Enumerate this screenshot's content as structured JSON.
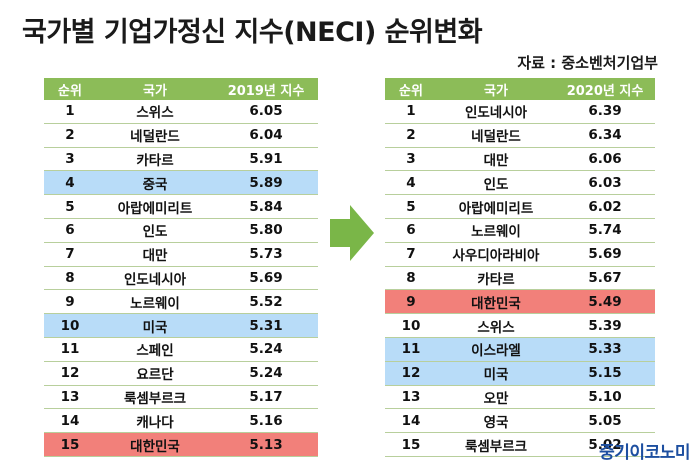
{
  "title": "국가별 기업가정신 지수(NECI) 순위변화",
  "source": "자료 : 중소벤처기업부",
  "watermark": "중기이코노미",
  "colors": {
    "header_green": "#8cbc58",
    "highlight_blue": "#b8dcf8",
    "highlight_red": "#f2807a",
    "arrow_green": "#7ab648"
  },
  "table_2019": {
    "headers": [
      "순위",
      "국가",
      "2019년 지수"
    ],
    "rows": [
      {
        "rank": "1",
        "country": "스위스",
        "score": "6.05",
        "highlight": ""
      },
      {
        "rank": "2",
        "country": "네덜란드",
        "score": "6.04",
        "highlight": ""
      },
      {
        "rank": "3",
        "country": "카타르",
        "score": "5.91",
        "highlight": ""
      },
      {
        "rank": "4",
        "country": "중국",
        "score": "5.89",
        "highlight": "blue"
      },
      {
        "rank": "5",
        "country": "아랍에미리트",
        "score": "5.84",
        "highlight": ""
      },
      {
        "rank": "6",
        "country": "인도",
        "score": "5.80",
        "highlight": ""
      },
      {
        "rank": "7",
        "country": "대만",
        "score": "5.73",
        "highlight": ""
      },
      {
        "rank": "8",
        "country": "인도네시아",
        "score": "5.69",
        "highlight": ""
      },
      {
        "rank": "9",
        "country": "노르웨이",
        "score": "5.52",
        "highlight": ""
      },
      {
        "rank": "10",
        "country": "미국",
        "score": "5.31",
        "highlight": "blue"
      },
      {
        "rank": "11",
        "country": "스페인",
        "score": "5.24",
        "highlight": ""
      },
      {
        "rank": "12",
        "country": "요르단",
        "score": "5.24",
        "highlight": ""
      },
      {
        "rank": "13",
        "country": "룩셈부르크",
        "score": "5.17",
        "highlight": ""
      },
      {
        "rank": "14",
        "country": "캐나다",
        "score": "5.16",
        "highlight": ""
      },
      {
        "rank": "15",
        "country": "대한민국",
        "score": "5.13",
        "highlight": "red"
      }
    ]
  },
  "table_2020": {
    "headers": [
      "순위",
      "국가",
      "2020년 지수"
    ],
    "rows": [
      {
        "rank": "1",
        "country": "인도네시아",
        "score": "6.39",
        "highlight": ""
      },
      {
        "rank": "2",
        "country": "네덜란드",
        "score": "6.34",
        "highlight": ""
      },
      {
        "rank": "3",
        "country": "대만",
        "score": "6.06",
        "highlight": ""
      },
      {
        "rank": "4",
        "country": "인도",
        "score": "6.03",
        "highlight": ""
      },
      {
        "rank": "5",
        "country": "아랍에미리트",
        "score": "6.02",
        "highlight": ""
      },
      {
        "rank": "6",
        "country": "노르웨이",
        "score": "5.74",
        "highlight": ""
      },
      {
        "rank": "7",
        "country": "사우디아라비아",
        "score": "5.69",
        "highlight": ""
      },
      {
        "rank": "8",
        "country": "카타르",
        "score": "5.67",
        "highlight": ""
      },
      {
        "rank": "9",
        "country": "대한민국",
        "score": "5.49",
        "highlight": "red"
      },
      {
        "rank": "10",
        "country": "스위스",
        "score": "5.39",
        "highlight": ""
      },
      {
        "rank": "11",
        "country": "이스라엘",
        "score": "5.33",
        "highlight": "blue"
      },
      {
        "rank": "12",
        "country": "미국",
        "score": "5.15",
        "highlight": "blue"
      },
      {
        "rank": "13",
        "country": "오만",
        "score": "5.10",
        "highlight": ""
      },
      {
        "rank": "14",
        "country": "영국",
        "score": "5.05",
        "highlight": ""
      },
      {
        "rank": "15",
        "country": "룩셈부르크",
        "score": "5.02",
        "highlight": ""
      }
    ]
  }
}
